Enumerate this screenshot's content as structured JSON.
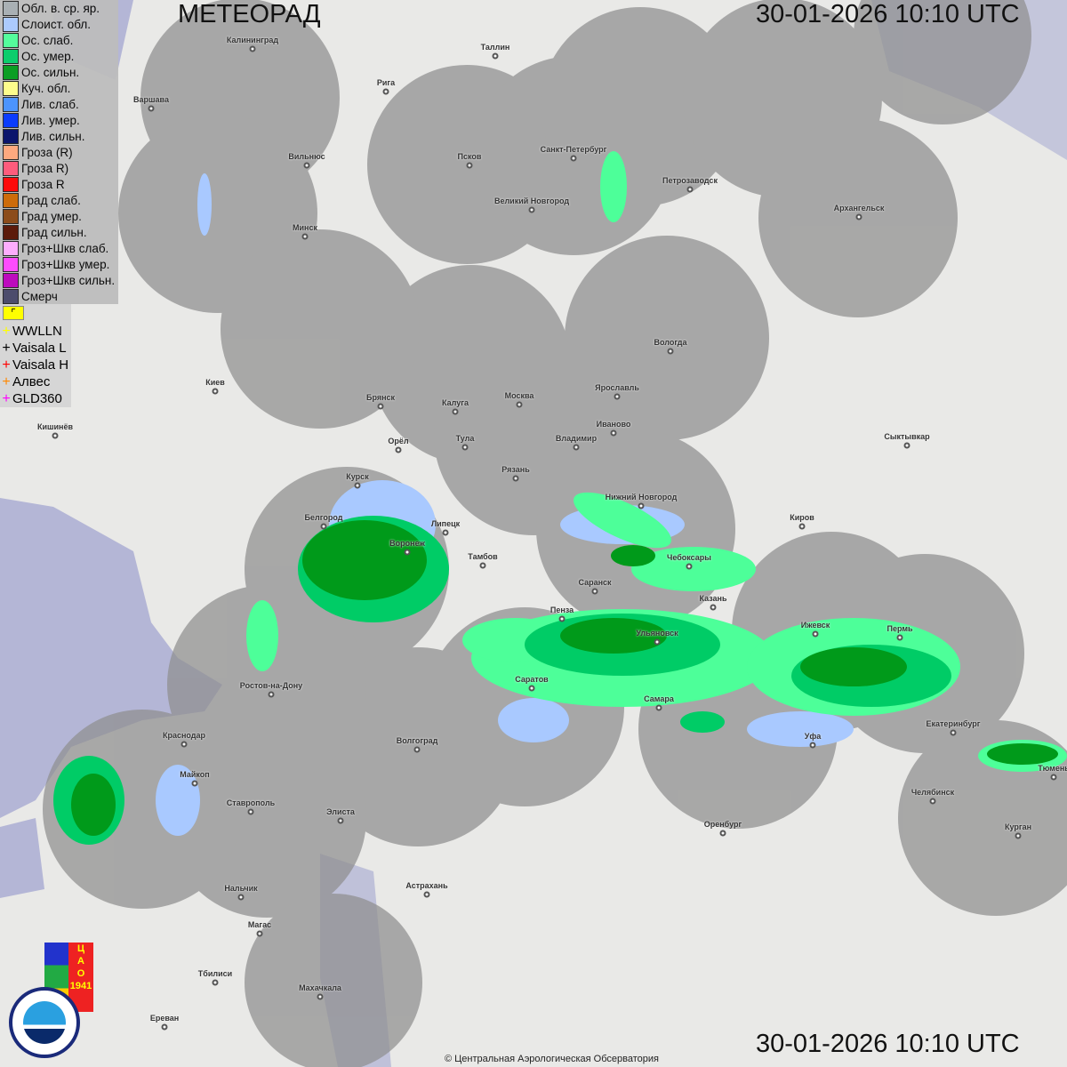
{
  "header": {
    "title": "МЕТЕОРАД",
    "datetime": "30-01-2026  10:10 UTC"
  },
  "footer": {
    "datetime": "30-01-2026  10:10 UTC",
    "copyright": "© Центральная Аэрологическая Обсерватория"
  },
  "legend": [
    {
      "label": "Обл. в. ср. яр.",
      "color": "#a6aeb2"
    },
    {
      "label": "Слоист. обл.",
      "color": "#a9c9ff"
    },
    {
      "label": "Ос. слаб.",
      "color": "#4dff99"
    },
    {
      "label": "Ос. умер.",
      "color": "#00cc66"
    },
    {
      "label": "Ос. сильн.",
      "color": "#009a1a"
    },
    {
      "label": "Куч. обл.",
      "color": "#ffff88"
    },
    {
      "label": "Лив. слаб.",
      "color": "#4490ff"
    },
    {
      "label": "Лив. умер.",
      "color": "#0033ff"
    },
    {
      "label": "Лив. сильн.",
      "color": "#000a66"
    },
    {
      "label": "Гроза (R)",
      "color": "#ffa67a"
    },
    {
      "label": "Гроза R)",
      "color": "#ff5577"
    },
    {
      "label": "Гроза R",
      "color": "#ff0000"
    },
    {
      "label": "Град слаб.",
      "color": "#cc6600"
    },
    {
      "label": "Град умер.",
      "color": "#884411"
    },
    {
      "label": "Град сильн.",
      "color": "#551100"
    },
    {
      "label": "Гроз+Шкв слаб.",
      "color": "#ffaaff"
    },
    {
      "label": "Гроз+Шкв умер.",
      "color": "#ff44ff"
    },
    {
      "label": "Гроз+Шкв сильн.",
      "color": "#bb00bb"
    },
    {
      "label": "Смерч",
      "color": "#444466"
    }
  ],
  "lightning": [
    {
      "label": "WWLLN",
      "color": "#ffff00"
    },
    {
      "label": "Vaisala L",
      "color": "#000000"
    },
    {
      "label": "Vaisala H",
      "color": "#ff0000"
    },
    {
      "label": "Алвес",
      "color": "#ff8800"
    },
    {
      "label": "GLD360",
      "color": "#ff00ff"
    }
  ],
  "cities": [
    "Калининград",
    "Таллин",
    "Рига",
    "Варшава",
    "Вильнюс",
    "Псков",
    "Санкт-Петербург",
    "Петрозаводск",
    "Великий Новгород",
    "Архангельск",
    "Минск",
    "Вологда",
    "Киев",
    "Брянск",
    "Калуга",
    "Москва",
    "Ярославль",
    "Иваново",
    "Кишинёв",
    "Тула",
    "Владимир",
    "Орёл",
    "Сыктывкар",
    "Рязань",
    "Курск",
    "Нижний Новгород",
    "Киров",
    "Белгород",
    "Липецк",
    "Воронеж",
    "Тамбов",
    "Чебоксары",
    "Саранск",
    "Казань",
    "Пенза",
    "Ижевск",
    "Пермь",
    "Ульяновск",
    "Саратов",
    "Ростов-на-Дону",
    "Самара",
    "Екатеринбург",
    "Уфа",
    "Краснодар",
    "Волгоград",
    "Тюмень",
    "Майкоп",
    "Челябинск",
    "Ставрополь",
    "Элиста",
    "Оренбург",
    "Курган",
    "Астрахань",
    "Нальчик",
    "Магас",
    "Тбилиси",
    "Махачкала",
    "Ереван"
  ],
  "logos": {
    "cao": "ЦАО 1941",
    "roshydromet": "РОСГИДРОМЕТ ROSHYDROMET"
  }
}
